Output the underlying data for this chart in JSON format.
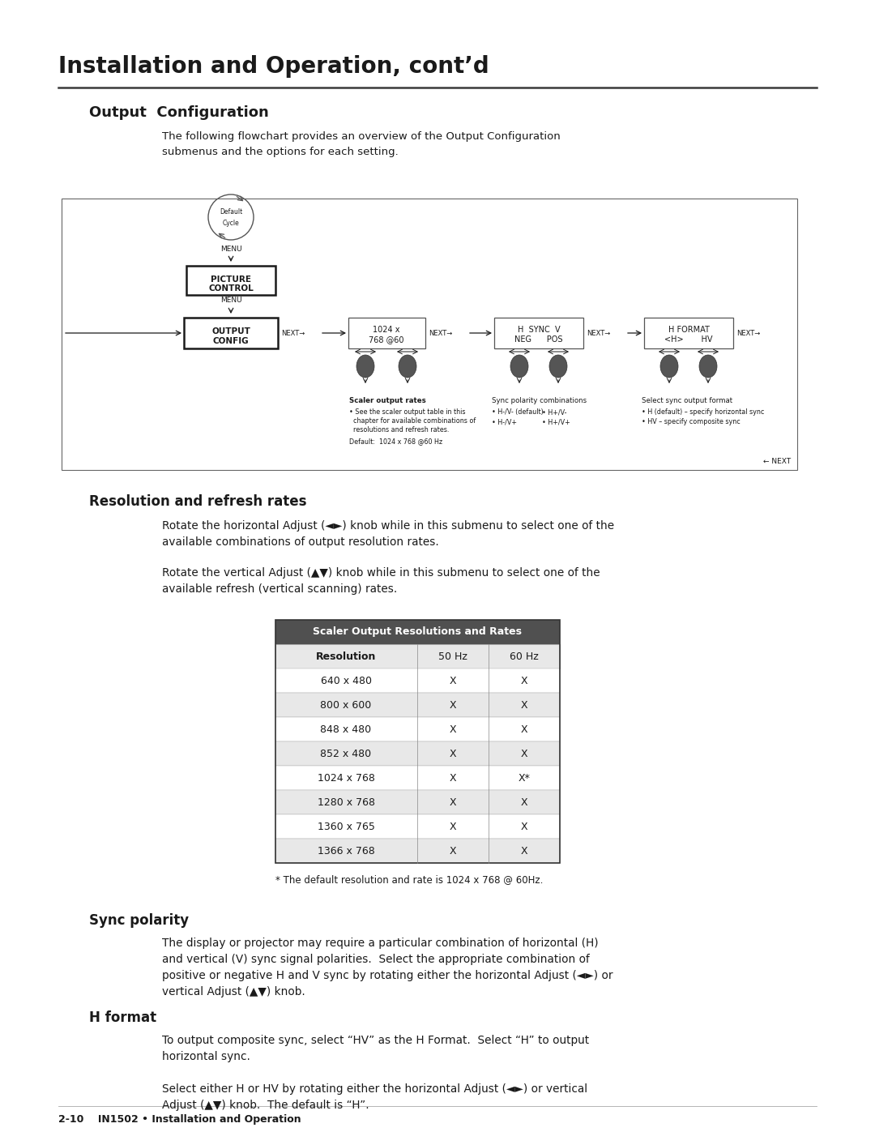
{
  "page_title": "Installation and Operation, cont’d",
  "section_title": "Output  Configuration",
  "section_intro": "The following flowchart provides an overview of the Output Configuration\nsubmenus and the options for each setting.",
  "section2_title": "Resolution and refresh rates",
  "section2_para1": "Rotate the horizontal Adjust (◄►) knob while in this submenu to select one of the\navailable combinations of output resolution rates.",
  "section2_para2": "Rotate the vertical Adjust (▲▼) knob while in this submenu to select one of the\navailable refresh (vertical scanning) rates.",
  "table_title": "Scaler Output Resolutions and Rates",
  "table_headers": [
    "Resolution",
    "50 Hz",
    "60 Hz"
  ],
  "table_rows": [
    [
      "640 x 480",
      "X",
      "X"
    ],
    [
      "800 x 600",
      "X",
      "X"
    ],
    [
      "848 x 480",
      "X",
      "X"
    ],
    [
      "852 x 480",
      "X",
      "X"
    ],
    [
      "1024 x 768",
      "X",
      "X*"
    ],
    [
      "1280 x 768",
      "X",
      "X"
    ],
    [
      "1360 x 765",
      "X",
      "X"
    ],
    [
      "1366 x 768",
      "X",
      "X"
    ]
  ],
  "table_note": "* The default resolution and rate is 1024 x 768 @ 60Hz.",
  "section3_title": "Sync polarity",
  "section3_para": "The display or projector may require a particular combination of horizontal (H)\nand vertical (V) sync signal polarities.  Select the appropriate combination of\npositive or negative H and V sync by rotating either the horizontal Adjust (◄►) or\nvertical Adjust (▲▼) knob.",
  "section4_title": "H format",
  "section4_para1": "To output composite sync, select “HV” as the H Format.  Select “H” to output\nhorizontal sync.",
  "section4_para2": "Select either H or HV by rotating either the horizontal Adjust (◄►) or vertical\nAdjust (▲▼) knob.  The default is “H”.",
  "footer": "2-10    IN1502 • Installation and Operation",
  "bg_color": "#ffffff",
  "text_color": "#1a1a1a"
}
